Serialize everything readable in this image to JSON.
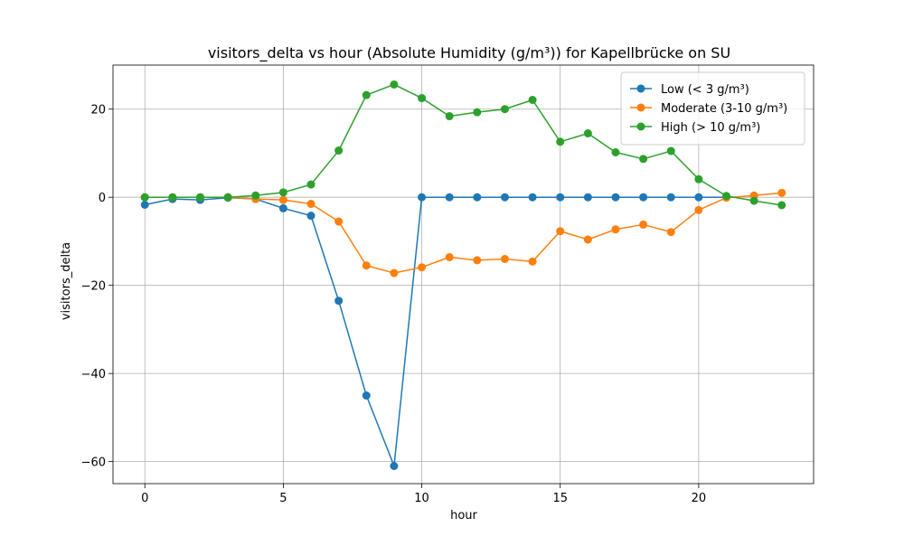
{
  "chart_data": {
    "type": "line",
    "title": "visitors_delta vs hour (Absolute Humidity (g/m³)) for Kapellbrücke on SU",
    "xlabel": "hour",
    "ylabel": "visitors_delta",
    "xlim": [
      -1.15,
      24.15
    ],
    "ylim": [
      -65,
      30
    ],
    "grid": true,
    "legend_position": "top-right",
    "x_ticks": [
      0,
      5,
      10,
      15,
      20
    ],
    "y_ticks": [
      -60,
      -40,
      -20,
      0,
      20
    ],
    "x_tick_labels": [
      "0",
      "5",
      "10",
      "15",
      "20"
    ],
    "y_tick_labels": [
      "−60",
      "−40",
      "−20",
      "0",
      "20"
    ],
    "x": [
      0,
      1,
      2,
      3,
      4,
      5,
      6,
      7,
      8,
      9,
      10,
      11,
      12,
      13,
      14,
      15,
      16,
      17,
      18,
      19,
      20,
      21,
      22,
      23
    ],
    "series": [
      {
        "name": "Low (< 3 g/m³)",
        "color": "#1f77b4",
        "values": [
          -1.7,
          -0.4,
          -0.6,
          -0.1,
          -0.4,
          -2.5,
          -4.2,
          -23.5,
          -45.0,
          -61.0,
          0,
          0,
          0,
          0,
          0,
          0,
          0,
          0,
          0,
          0,
          0,
          0,
          null,
          null
        ]
      },
      {
        "name": "Moderate (3-10 g/m³)",
        "color": "#ff7f0e",
        "values": [
          0,
          0,
          0,
          0,
          -0.4,
          -0.6,
          -1.5,
          -5.5,
          -15.5,
          -17.2,
          -15.9,
          -13.6,
          -14.3,
          -14.0,
          -14.6,
          -7.7,
          -9.6,
          -7.3,
          -6.2,
          -7.9,
          -2.9,
          -0.1,
          0.4,
          1.0
        ]
      },
      {
        "name": "High (> 10 g/m³)",
        "color": "#2ca02c",
        "values": [
          0,
          0,
          0,
          0,
          0.4,
          1.1,
          2.9,
          10.6,
          23.2,
          25.6,
          22.5,
          18.4,
          19.3,
          20.0,
          22.1,
          12.6,
          14.5,
          10.2,
          8.7,
          10.5,
          4.1,
          0.3,
          -0.8,
          -1.8
        ]
      }
    ]
  }
}
